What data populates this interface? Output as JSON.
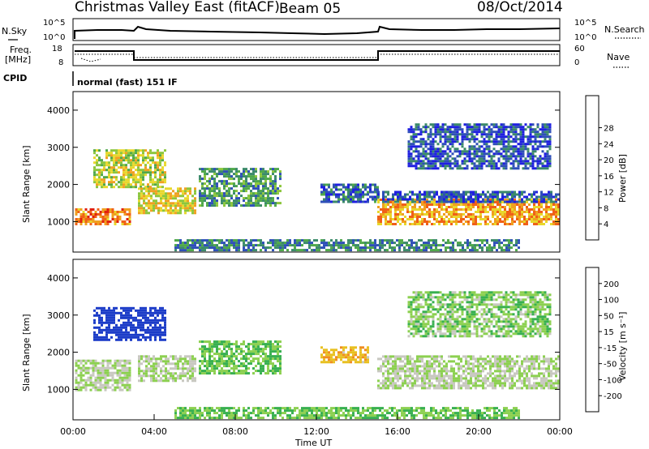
{
  "header": {
    "title": "Christmas Valley East (fitACF)",
    "beam": "Beam 05",
    "date": "08/Oct/2014"
  },
  "panels": {
    "nsky": {
      "label": "N.Sky",
      "right_label": "N.Search",
      "ticks_left": [
        "10^5",
        "10^0"
      ],
      "ticks_right": [
        "10^5",
        "10^0"
      ]
    },
    "freq": {
      "label_line1": "Freq.",
      "label_line2": "[MHz]",
      "ticks_left": [
        "18",
        "8"
      ],
      "right_label": "Nave",
      "ticks_right": [
        "60",
        "0"
      ]
    },
    "cpid": {
      "label": "CPID",
      "text": "normal (fast) 151 IF"
    }
  },
  "chart_data": [
    {
      "type": "heatmap",
      "name": "power",
      "ylabel": "Slant Range [km]",
      "yticks": [
        1000,
        2000,
        3000,
        4000
      ],
      "ylim": [
        180,
        4500
      ],
      "colorbar_label": "Power [dB]",
      "colorbar_ticks": [
        4,
        8,
        12,
        16,
        20,
        24,
        28
      ],
      "colorbar_colors": [
        "#1f1fe0",
        "#2e4fb8",
        "#3b8a6a",
        "#4fa84a",
        "#8cc63c",
        "#e8d82c",
        "#f0a020",
        "#f06018",
        "#e02010"
      ],
      "regions": [
        {
          "t0": 0.1,
          "t1": 2.8,
          "r0": 900,
          "r1": 1300,
          "level": 28
        },
        {
          "t0": 1.0,
          "t1": 4.6,
          "r0": 1900,
          "r1": 2900,
          "level": 20
        },
        {
          "t0": 3.2,
          "t1": 6.0,
          "r0": 1200,
          "r1": 1900,
          "level": 22
        },
        {
          "t0": 6.2,
          "t1": 10.2,
          "r0": 1400,
          "r1": 2400,
          "level": 12
        },
        {
          "t0": 12.2,
          "t1": 15.0,
          "r0": 1500,
          "r1": 2000,
          "level": 8
        },
        {
          "t0": 15.0,
          "t1": 24.0,
          "r0": 900,
          "r1": 1600,
          "level": 26
        },
        {
          "t0": 15.0,
          "t1": 24.0,
          "r0": 1500,
          "r1": 1800,
          "level": 6
        },
        {
          "t0": 16.5,
          "t1": 23.5,
          "r0": 2400,
          "r1": 3600,
          "level": 6
        },
        {
          "t0": 5.0,
          "t1": 22.0,
          "r0": 200,
          "r1": 500,
          "level": 10
        }
      ]
    },
    {
      "type": "heatmap",
      "name": "velocity",
      "xlabel": "Time UT",
      "ylabel": "Slant Range [km]",
      "yticks": [
        1000,
        2000,
        3000,
        4000
      ],
      "ylim": [
        180,
        4500
      ],
      "xticks": [
        "00:00",
        "04:00",
        "08:00",
        "12:00",
        "16:00",
        "20:00",
        "00:00"
      ],
      "xlim": [
        0,
        24
      ],
      "colorbar_label": "Velocity [m s⁻¹]",
      "colorbar_ticks": [
        200,
        100,
        50,
        15,
        -15,
        -50,
        -100,
        -200
      ],
      "colorbar_colors": [
        "#1c3cc8",
        "#2c8cc0",
        "#38b050",
        "#8cd050",
        "#c8c8c0",
        "#e8c020",
        "#f08c20",
        "#f04020",
        "#e01010"
      ],
      "regions": [
        {
          "t0": 0.1,
          "t1": 2.8,
          "r0": 950,
          "r1": 1800,
          "level": 0
        },
        {
          "t0": 1.0,
          "t1": 4.6,
          "r0": 2300,
          "r1": 3200,
          "level": 180
        },
        {
          "t0": 3.2,
          "t1": 6.0,
          "r0": 1200,
          "r1": 1900,
          "level": 0
        },
        {
          "t0": 6.2,
          "t1": 10.2,
          "r0": 1400,
          "r1": 2300,
          "level": 30
        },
        {
          "t0": 12.2,
          "t1": 14.5,
          "r0": 1700,
          "r1": 2100,
          "level": -60
        },
        {
          "t0": 15.0,
          "t1": 24.0,
          "r0": 1000,
          "r1": 1900,
          "level": 0
        },
        {
          "t0": 16.5,
          "t1": 23.5,
          "r0": 2400,
          "r1": 3600,
          "level": 20
        },
        {
          "t0": 5.0,
          "t1": 22.0,
          "r0": 200,
          "r1": 500,
          "level": 30
        }
      ]
    }
  ]
}
